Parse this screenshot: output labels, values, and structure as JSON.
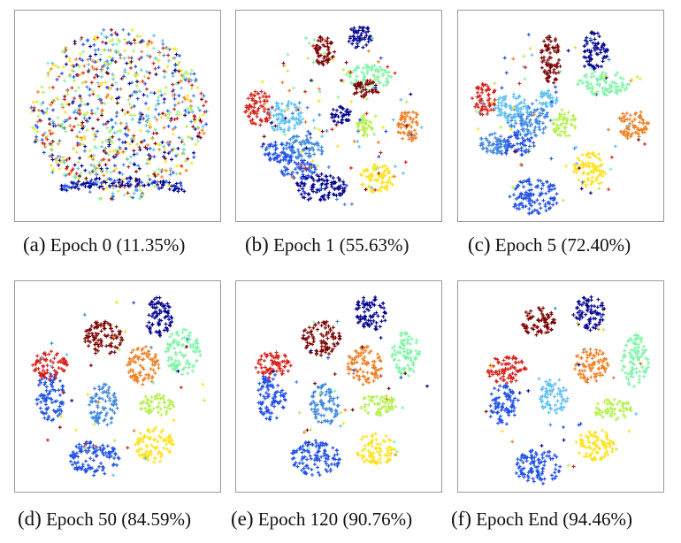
{
  "colors": [
    "#00008f",
    "#1e4fe6",
    "#3d86e0",
    "#5fc0f5",
    "#7ff5a8",
    "#b6f04e",
    "#ffe21a",
    "#ee7f22",
    "#d81e16",
    "#7a0000"
  ],
  "chart_data": [
    {
      "type": "scatter",
      "tag": "(a)",
      "label": "Epoch 0",
      "accuracy": "(11.35%)",
      "clusters": []
    },
    {
      "type": "scatter",
      "tag": "(b)",
      "label": "Epoch 1",
      "accuracy": "(55.63%)",
      "clusters": []
    },
    {
      "type": "scatter",
      "tag": "(c)",
      "label": "Epoch 5",
      "accuracy": "(72.40%)",
      "clusters": []
    },
    {
      "type": "scatter",
      "tag": "(d)",
      "label": "Epoch 50",
      "accuracy": "(84.59%)",
      "clusters": []
    },
    {
      "type": "scatter",
      "tag": "(e)",
      "label": "Epoch 120",
      "accuracy": "(90.76%)",
      "clusters": []
    },
    {
      "type": "scatter",
      "tag": "(f)",
      "label": "Epoch End",
      "accuracy": "(94.46%)",
      "clusters": []
    }
  ]
}
